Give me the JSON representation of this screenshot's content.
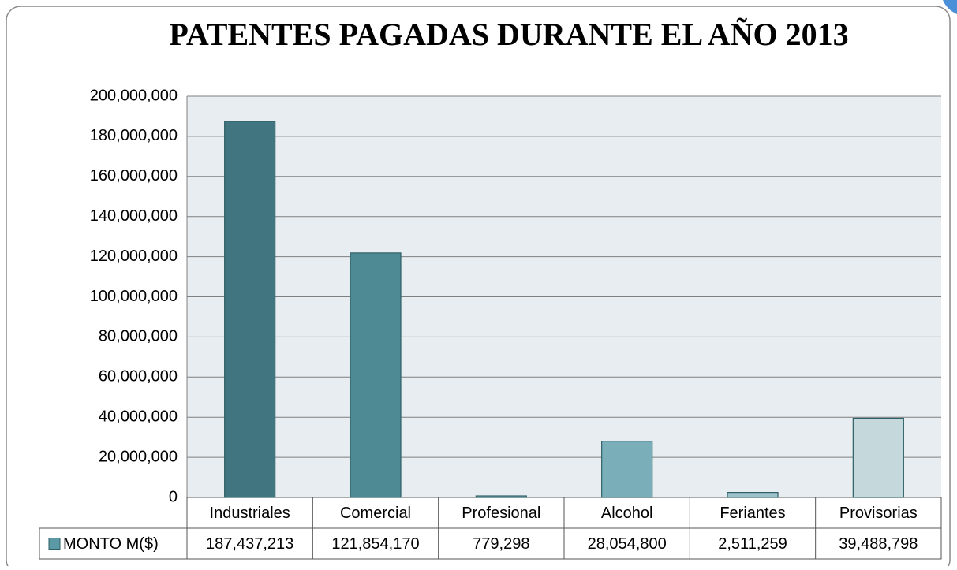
{
  "chart_data": {
    "type": "bar",
    "title": "PATENTES PAGADAS DURANTE EL AÑO 2013",
    "categories": [
      "Industriales",
      "Comercial",
      "Profesional",
      "Alcohol",
      "Feriantes",
      "Provisorias"
    ],
    "series": [
      {
        "name": "MONTO M($)",
        "color": "#5b9aa4",
        "colors": [
          "#41757f",
          "#4d8a93",
          "#6aa3ad",
          "#7aafba",
          "#9cc3ca",
          "#c5d9dc"
        ],
        "values": [
          187437213,
          121854170,
          779298,
          28054800,
          2511259,
          39488798
        ],
        "value_labels": [
          "187,437,213",
          "121,854,170",
          "779,298",
          "28,054,800",
          "2,511,259",
          "39,488,798"
        ]
      }
    ],
    "ylim": [
      0,
      200000000
    ],
    "yticks": [
      0,
      {
        "value": 20000000,
        "label": "20,000,000"
      },
      {
        "value": 40000000,
        "label": "40,000,000"
      },
      {
        "value": 60000000,
        "label": "60,000,000"
      },
      {
        "value": 80000000,
        "label": "80,000,000"
      },
      {
        "value": 100000000,
        "label": "100,000,000"
      },
      {
        "value": 120000000,
        "label": "120,000,000"
      },
      {
        "value": 140000000,
        "label": "140,000,000"
      },
      {
        "value": 160000000,
        "label": "160,000,000"
      },
      {
        "value": 180000000,
        "label": "180,000,000"
      },
      {
        "value": 200000000,
        "label": "200,000,000"
      }
    ],
    "grid": true
  }
}
